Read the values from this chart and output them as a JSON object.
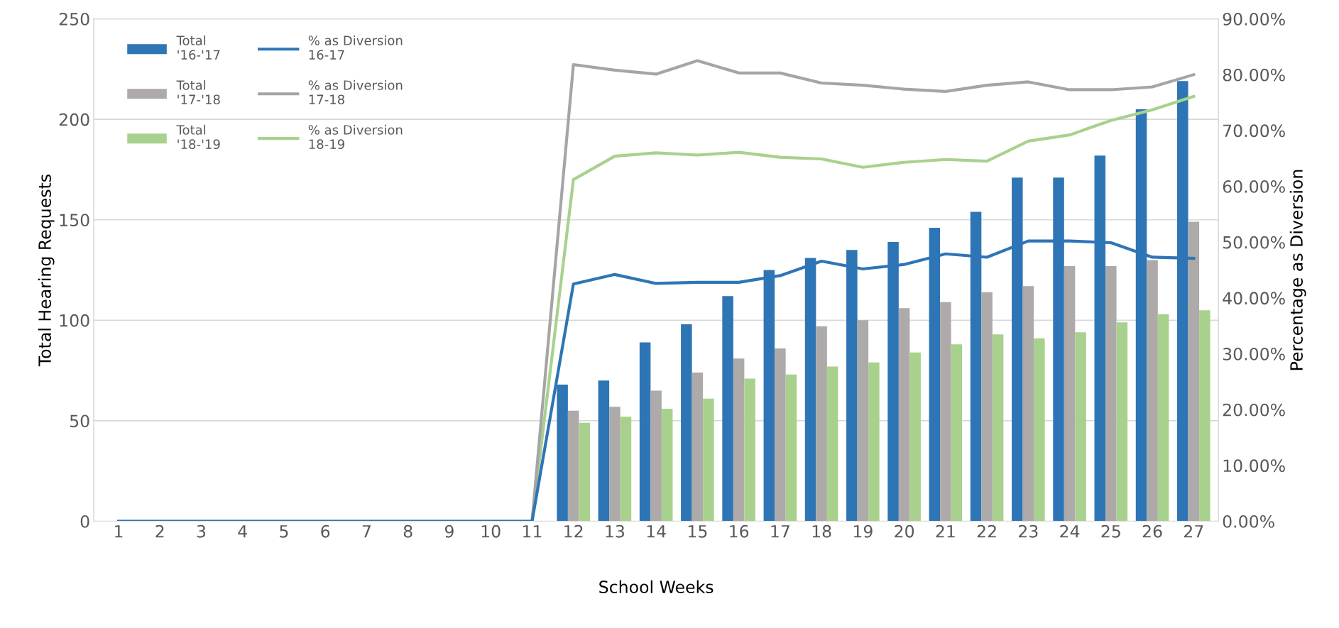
{
  "chart_data": {
    "type": "bar",
    "xlabel": "School Weeks",
    "ylabel": "Total Hearing Requests",
    "y2label": "Percentage as Diversion",
    "categories": [
      "1",
      "2",
      "3",
      "4",
      "5",
      "6",
      "7",
      "8",
      "9",
      "10",
      "11",
      "12",
      "13",
      "14",
      "15",
      "16",
      "17",
      "18",
      "19",
      "20",
      "21",
      "22",
      "23",
      "24",
      "25",
      "26",
      "27"
    ],
    "series": [
      {
        "name": "Total\n'16-'17",
        "color": "#2e75b6",
        "values": [
          0,
          0,
          0,
          0,
          0,
          0,
          0,
          0,
          0,
          0,
          0,
          68,
          70,
          89,
          98,
          112,
          125,
          131,
          135,
          139,
          146,
          154,
          171,
          171,
          182,
          205,
          219
        ]
      },
      {
        "name": "Total\n'17-'18",
        "color": "#aeaaaa",
        "values": [
          0,
          0,
          0,
          0,
          0,
          0,
          0,
          0,
          0,
          0,
          0,
          55,
          57,
          65,
          74,
          81,
          86,
          97,
          100,
          106,
          109,
          114,
          117,
          127,
          127,
          130,
          149
        ]
      },
      {
        "name": "Total\n'18-'19",
        "color": "#a9d18e",
        "values": [
          0,
          0,
          0,
          0,
          0,
          0,
          0,
          0,
          0,
          0,
          0,
          49,
          52,
          56,
          61,
          71,
          73,
          77,
          79,
          84,
          88,
          93,
          91,
          94,
          99,
          103,
          105
        ]
      },
      {
        "name": "% as Diversion\n16-17",
        "type": "line",
        "axis": "y2",
        "color": "#2e75b6",
        "values": [
          0,
          0,
          0,
          0,
          0,
          0,
          0,
          0,
          0,
          0,
          0,
          42.5,
          44.2,
          42.6,
          42.8,
          42.8,
          44.0,
          46.6,
          45.2,
          46.0,
          47.9,
          47.3,
          50.2,
          50.2,
          49.9,
          47.3,
          47.1
        ]
      },
      {
        "name": "% as Diversion\n17-18",
        "type": "line",
        "axis": "y2",
        "color": "#a5a5a5",
        "values": [
          null,
          null,
          null,
          null,
          null,
          null,
          null,
          null,
          null,
          null,
          0,
          81.8,
          80.8,
          80.1,
          82.5,
          80.3,
          80.3,
          78.5,
          78.1,
          77.4,
          77.0,
          78.1,
          78.7,
          77.3,
          77.3,
          77.8,
          80.0
        ]
      },
      {
        "name": "% as Diversion\n18-19",
        "type": "line",
        "axis": "y2",
        "color": "#a9d18e",
        "values": [
          null,
          null,
          null,
          null,
          null,
          null,
          null,
          null,
          null,
          null,
          0,
          61.2,
          65.4,
          66.0,
          65.6,
          66.1,
          65.2,
          64.9,
          63.4,
          64.3,
          64.8,
          64.5,
          68.1,
          69.2,
          71.8,
          73.7,
          76.1
        ]
      }
    ],
    "ylim": [
      0,
      250
    ],
    "yticks": [
      0,
      50,
      100,
      150,
      200,
      250
    ],
    "y2lim": [
      0,
      90
    ],
    "y2ticks": [
      {
        "value": 0,
        "label": "0.00%"
      },
      {
        "value": 10,
        "label": "10.00%"
      },
      {
        "value": 20,
        "label": "20.00%"
      },
      {
        "value": 30,
        "label": "30.00%"
      },
      {
        "value": 40,
        "label": "40.00%"
      },
      {
        "value": 50,
        "label": "50.00%"
      },
      {
        "value": 60,
        "label": "60.00%"
      },
      {
        "value": 70,
        "label": "70.00%"
      },
      {
        "value": 80,
        "label": "80.00%"
      },
      {
        "value": 90,
        "label": "90.00%"
      }
    ],
    "grid": "y",
    "legend": "top left",
    "marker": "none",
    "line_style": "solid"
  }
}
